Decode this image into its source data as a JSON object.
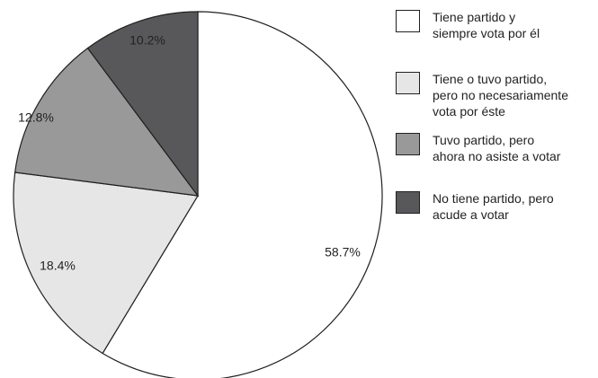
{
  "chart_data": {
    "type": "pie",
    "slices": [
      {
        "label": "Tiene partido y siempre vota por él",
        "value": 58.7,
        "display": "58.7%",
        "color": "#ffffff"
      },
      {
        "label": "Tiene o tuvo partido, pero no necesariamente vota por éste",
        "value": 18.4,
        "display": "18.4%",
        "color": "#e6e6e6"
      },
      {
        "label": "Tuvo partido, pero ahora no asiste a votar",
        "value": 12.8,
        "display": "12.8%",
        "color": "#999999"
      },
      {
        "label": "No tiene partido, pero acude a votar",
        "value": 10.2,
        "display": "10.2%",
        "color": "#58585a"
      }
    ],
    "legend": {
      "placement": "right",
      "items": [
        {
          "text": "Tiene partido y\nsiempre vota por él",
          "color": "#ffffff"
        },
        {
          "text": "Tiene o tuvo partido,\npero no necesariamente\nvota por éste",
          "color": "#e6e6e6"
        },
        {
          "text": "Tuvo partido, pero\nahora no asiste a votar",
          "color": "#999999"
        },
        {
          "text": "No tiene partido, pero\nacude a votar",
          "color": "#58585a"
        }
      ]
    },
    "start": "12 o'clock",
    "direction": "clockwise",
    "outline_color": "#231f20"
  }
}
